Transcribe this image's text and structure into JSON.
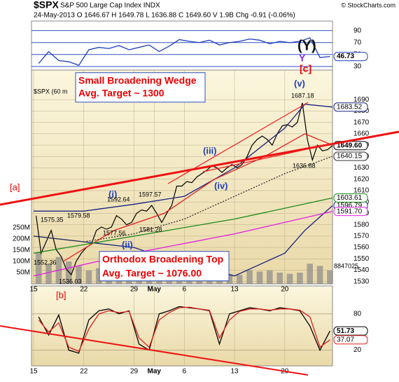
{
  "header": {
    "symbol": "$SPX",
    "name": "S&P 500 Large Cap Index INDX",
    "quote": "24-May-2013  O 1646.67  H 1649.78  L 1636.88  C 1649.60  V 1.9B  Chg -0.91 (-0.06%)",
    "watermark": "© StockCharts.com"
  },
  "chart_data": [
    {
      "type": "line",
      "panel": "rsi",
      "ylim": [
        24,
        106
      ],
      "yticks": [
        30,
        50,
        70,
        90
      ],
      "xlim": [
        0,
        29.75
      ],
      "series": [
        {
          "color": "#1f3fbf",
          "end_label": "46.73",
          "x": [
            0.5,
            1.5,
            2.5,
            3.5,
            4.5,
            5.5,
            6.5,
            7.5,
            8.5,
            9.5,
            10.5,
            11.5,
            12.5,
            13.5,
            14.5,
            15.5,
            16.5,
            17.5,
            18.5,
            19.5,
            20.5,
            21.5,
            22.5,
            23.5,
            24.5,
            25.5,
            26.5,
            27.5,
            28.5,
            29.5
          ],
          "values": [
            35,
            55,
            40,
            38,
            32,
            58,
            62,
            60,
            65,
            58,
            62,
            66,
            55,
            64,
            75,
            72,
            70,
            74,
            66,
            70,
            72,
            76,
            74,
            68,
            72,
            70,
            72,
            78,
            45,
            46.73
          ]
        }
      ],
      "annotations": [
        {
          "text": "(Y)"
        },
        {
          "text": "Y"
        },
        {
          "text": "[c]"
        }
      ]
    },
    {
      "type": "line",
      "panel": "price",
      "ylim": [
        1528,
        1716
      ],
      "xlim": [
        0,
        29.75
      ],
      "yticks": [
        1530,
        1540,
        1550,
        1560,
        1570,
        1580,
        1590,
        1600,
        1610,
        1620,
        1630,
        1640,
        1650,
        1660,
        1670,
        1680,
        1690
      ],
      "xticks": [
        {
          "value": 0,
          "label": "15"
        },
        {
          "value": 5,
          "label": "22"
        },
        {
          "value": 10,
          "label": "29"
        },
        {
          "value": 12,
          "label": "May"
        },
        {
          "value": 15,
          "label": "6"
        },
        {
          "value": 20,
          "label": "13"
        },
        {
          "value": 25,
          "label": "20"
        }
      ],
      "series": [
        {
          "color": "#000000",
          "end_label": "1649.60",
          "x": [
            0.25,
            0.75,
            1.25,
            1.75,
            2.25,
            2.75,
            3.25,
            3.75,
            4.25,
            4.75,
            5.25,
            5.75,
            6.25,
            6.75,
            7.25,
            7.75,
            8.25,
            8.75,
            9.25,
            9.75,
            10.25,
            10.75,
            11.25,
            11.75,
            12.25,
            12.75,
            13.25,
            13.75,
            14.25,
            14.75,
            15.25,
            15.75,
            16.25,
            16.75,
            17.25,
            17.75,
            18.25,
            18.75,
            19.25,
            19.75,
            20.25,
            20.75,
            21.25,
            21.75,
            22.25,
            22.75,
            23.25,
            23.75,
            24.25,
            24.75,
            25.25,
            25.75,
            26.25,
            26.75,
            27.25,
            27.75,
            28.25,
            28.75,
            29.25,
            29.75
          ],
          "values": [
            1588,
            1555,
            1565,
            1575,
            1558,
            1552,
            1541,
            1536.03,
            1548,
            1555,
            1560,
            1563,
            1575,
            1578,
            1576,
            1578,
            1588,
            1585,
            1580,
            1582,
            1590,
            1593,
            1592,
            1597,
            1590,
            1582,
            1590,
            1597,
            1614,
            1614,
            1618,
            1617,
            1622,
            1625,
            1628,
            1632,
            1630,
            1626,
            1630,
            1633,
            1630,
            1633,
            1640,
            1650,
            1655,
            1658,
            1655,
            1650,
            1660,
            1667,
            1668,
            1666,
            1670,
            1687.18,
            1655,
            1636.88,
            1650,
            1645,
            1646,
            1649.6
          ]
        },
        {
          "color": "#1a237e",
          "end_label": "1683.52",
          "x": [
            0,
            5,
            10,
            15,
            20,
            25,
            27,
            29.75
          ],
          "values": [
            1592,
            1592,
            1598,
            1605,
            1630,
            1665,
            1686,
            1683.52
          ]
        },
        {
          "color": "#1a237e",
          "end_label": "1596.79",
          "x": [
            0,
            5,
            10,
            15,
            20,
            25,
            27,
            29.75
          ],
          "values": [
            1570,
            1565,
            1560,
            1545,
            1535,
            1555,
            1575,
            1596.79
          ]
        },
        {
          "color": "#333333",
          "dash": true,
          "end_label": "1640.15",
          "x": [
            0,
            5,
            10,
            15,
            20,
            25,
            29.75
          ],
          "values": [
            1570,
            1565,
            1572,
            1585,
            1605,
            1625,
            1640.15
          ]
        },
        {
          "color": "#e02020",
          "x": [
            3,
            8,
            13,
            18,
            23,
            27,
            29.75
          ],
          "values": [
            1548,
            1575,
            1590,
            1620,
            1640,
            1660,
            1650
          ]
        },
        {
          "color": "#1a8a1a",
          "end_label": "1603.61",
          "x": [
            0,
            10,
            20,
            29.75
          ],
          "values": [
            1555,
            1570,
            1585,
            1603.61
          ]
        },
        {
          "color": "#e020e0",
          "end_label": "1591.70",
          "x": [
            0,
            10,
            20,
            29.75
          ],
          "values": [
            1535,
            1555,
            1572,
            1591.7
          ]
        }
      ],
      "volume": {
        "color": "#8a8a8a",
        "vlim": [
          0,
          953
        ],
        "end_label": "8847025",
        "vticks": [
          {
            "value": 50,
            "label": "50M"
          },
          {
            "value": 100,
            "label": "100M"
          },
          {
            "value": 150,
            "label": "150M"
          },
          {
            "value": 200,
            "label": "200M"
          },
          {
            "value": 250,
            "label": "250M"
          }
        ],
        "x": [
          0.5,
          1.5,
          2.5,
          3.5,
          4.5,
          5.5,
          6.5,
          7.5,
          8.5,
          9.5,
          10.5,
          11.5,
          12.5,
          13.5,
          14.5,
          15.5,
          16.5,
          17.5,
          18.5,
          19.5,
          20.5,
          21.5,
          22.5,
          23.5,
          24.5,
          25.5,
          26.5,
          27.5,
          28.5,
          29.5
        ],
        "values": [
          140,
          90,
          120,
          100,
          80,
          60,
          70,
          90,
          60,
          70,
          50,
          60,
          70,
          60,
          50,
          40,
          45,
          50,
          40,
          45,
          40,
          60,
          55,
          60,
          50,
          45,
          50,
          90,
          80,
          60
        ]
      },
      "annotations": [
        {
          "text": "Small  Broadening Wedge"
        },
        {
          "text": "Avg. Target ~ 1300"
        },
        {
          "text": "Orthodox Broadening Top"
        },
        {
          "text": "Avg. Target ~ 1076.00"
        },
        {
          "text": "(i)"
        },
        {
          "text": "(ii)"
        },
        {
          "text": "(iii)"
        },
        {
          "text": "(iv)"
        },
        {
          "text": "(v)"
        },
        {
          "text": "[a]"
        },
        {
          "text": "[b]"
        },
        {
          "text": "1575.35"
        },
        {
          "text": "1579.58"
        },
        {
          "text": "1592.64"
        },
        {
          "text": "1597.57"
        },
        {
          "text": "1577.56"
        },
        {
          "text": "1581.28"
        },
        {
          "text": "1552.36"
        },
        {
          "text": "1536.03"
        },
        {
          "text": "1687.18"
        },
        {
          "text": "1636.88"
        },
        {
          "text": "$SPX (60 m"
        }
      ]
    },
    {
      "type": "line",
      "panel": "stoch",
      "ylim": [
        -6,
        126
      ],
      "yticks": [
        20,
        80
      ],
      "xlim": [
        0,
        29.75
      ],
      "xticks": [
        {
          "value": 0,
          "label": "15"
        },
        {
          "value": 5,
          "label": "22"
        },
        {
          "value": 10,
          "label": "29"
        },
        {
          "value": 12,
          "label": "May"
        },
        {
          "value": 15,
          "label": "6"
        },
        {
          "value": 20,
          "label": "13"
        },
        {
          "value": 25,
          "label": "20"
        }
      ],
      "series": [
        {
          "color": "#000000",
          "end_label": "51.73",
          "x": [
            0.5,
            1.5,
            2.5,
            3.5,
            4.5,
            5.5,
            6.5,
            7.5,
            8.5,
            9.5,
            10.5,
            11.5,
            12.5,
            13.5,
            14.5,
            15.5,
            16.5,
            17.5,
            18.5,
            19.5,
            20.5,
            21.5,
            22.5,
            23.5,
            24.5,
            25.5,
            26.5,
            27.5,
            28.5,
            29.5
          ],
          "values": [
            75,
            45,
            78,
            20,
            15,
            70,
            85,
            88,
            80,
            85,
            30,
            20,
            80,
            85,
            92,
            90,
            88,
            85,
            30,
            80,
            85,
            90,
            88,
            85,
            90,
            88,
            85,
            60,
            20,
            51.73
          ]
        },
        {
          "color": "#e02020",
          "end_label": "37.07",
          "x": [
            0.5,
            1.5,
            2.5,
            3.5,
            4.5,
            5.5,
            6.5,
            7.5,
            8.5,
            9.5,
            10.5,
            11.5,
            12.5,
            13.5,
            14.5,
            15.5,
            16.5,
            17.5,
            18.5,
            19.5,
            20.5,
            21.5,
            22.5,
            23.5,
            24.5,
            25.5,
            26.5,
            27.5,
            28.5,
            29.5
          ],
          "values": [
            70,
            50,
            65,
            25,
            18,
            55,
            80,
            85,
            82,
            84,
            40,
            25,
            70,
            82,
            90,
            91,
            88,
            86,
            40,
            70,
            84,
            88,
            88,
            86,
            88,
            88,
            86,
            75,
            25,
            37.07
          ]
        }
      ]
    }
  ]
}
